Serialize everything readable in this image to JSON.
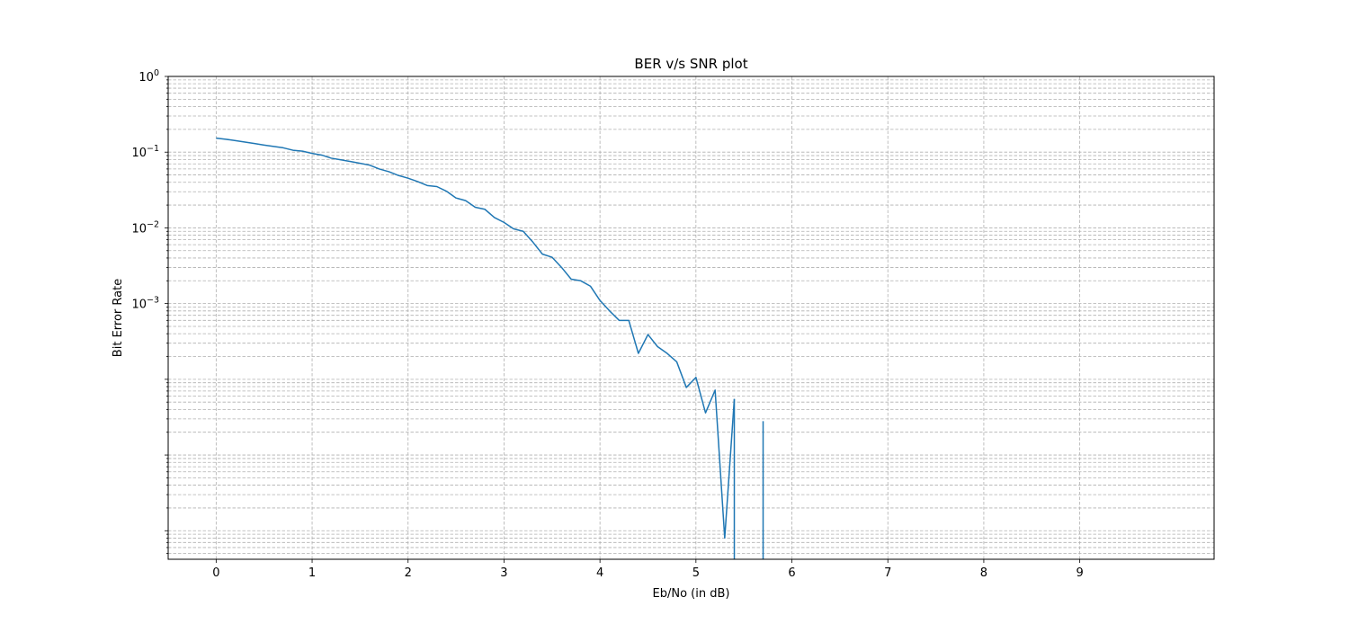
{
  "chart_data": {
    "type": "line",
    "title": "BER v/s SNR plot",
    "xlabel": "Eb/No (in dB)",
    "ylabel": "Bit Error Rate",
    "xlim": [
      -0.5,
      10.4
    ],
    "ylim": [
      4.2e-07,
      1
    ],
    "yscale": "log",
    "grid": true,
    "grid_style": "dashed",
    "x_ticks": [
      0,
      1,
      2,
      3,
      4,
      5,
      6,
      7,
      8,
      9
    ],
    "x_tick_labels": [
      "0",
      "1",
      "2",
      "3",
      "4",
      "5",
      "6",
      "7",
      "8",
      "9"
    ],
    "y_major_ticks": [
      1,
      0.1,
      0.01,
      0.001
    ],
    "y_tick_labels": [
      {
        "base": "10",
        "exp": "0"
      },
      {
        "base": "10",
        "exp": "−1"
      },
      {
        "base": "10",
        "exp": "−2"
      },
      {
        "base": "10",
        "exp": "−3"
      }
    ],
    "series": [
      {
        "name": "",
        "color": "#1f77b4",
        "x": [
          0,
          0.1,
          0.2,
          0.3,
          0.4,
          0.5,
          0.6,
          0.7,
          0.8,
          0.9,
          1.0,
          1.1,
          1.2,
          1.3,
          1.4,
          1.5,
          1.6,
          1.7,
          1.8,
          1.9,
          2.0,
          2.1,
          2.2,
          2.3,
          2.4,
          2.5,
          2.6,
          2.7,
          2.8,
          2.9,
          3.0,
          3.1,
          3.2,
          3.3,
          3.4,
          3.5,
          3.6,
          3.7,
          3.8,
          3.9,
          4.0,
          4.1,
          4.2,
          4.3,
          4.4,
          4.5,
          4.6,
          4.7,
          4.8,
          4.9,
          5.0,
          5.1,
          5.2,
          5.3,
          5.4
        ],
        "y": [
          0.153,
          0.148,
          0.142,
          0.136,
          0.13,
          0.124,
          0.119,
          0.114,
          0.106,
          0.103,
          0.0962,
          0.0915,
          0.0832,
          0.0791,
          0.0753,
          0.0712,
          0.0673,
          0.0599,
          0.0552,
          0.0492,
          0.0453,
          0.0409,
          0.0362,
          0.0351,
          0.0305,
          0.0248,
          0.0229,
          0.0187,
          0.0176,
          0.0137,
          0.0118,
          0.0097,
          0.009,
          0.0065,
          0.0045,
          0.0041,
          0.003,
          0.0021,
          0.002,
          0.0017,
          0.0011,
          0.0008,
          0.0006,
          0.0006,
          0.00022,
          0.00039,
          0.00027,
          0.00022,
          0.00017,
          7.8e-05,
          0.000106,
          3.6e-05,
          7.2e-05,
          8e-07,
          5.5e-05
        ]
      }
    ],
    "spikes": [
      {
        "x": 5.4,
        "y_top": 5.5e-05
      },
      {
        "x": 5.7,
        "y_top": 2.8e-05
      }
    ]
  }
}
